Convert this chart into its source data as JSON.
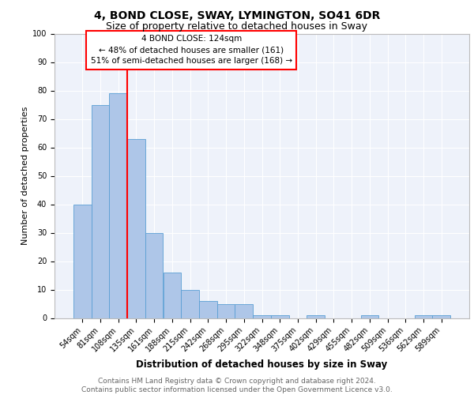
{
  "title1": "4, BOND CLOSE, SWAY, LYMINGTON, SO41 6DR",
  "title2": "Size of property relative to detached houses in Sway",
  "xlabel": "Distribution of detached houses by size in Sway",
  "ylabel": "Number of detached properties",
  "categories": [
    "54sqm",
    "81sqm",
    "108sqm",
    "135sqm",
    "161sqm",
    "188sqm",
    "215sqm",
    "242sqm",
    "268sqm",
    "295sqm",
    "322sqm",
    "348sqm",
    "375sqm",
    "402sqm",
    "429sqm",
    "455sqm",
    "482sqm",
    "509sqm",
    "536sqm",
    "562sqm",
    "589sqm"
  ],
  "values": [
    40,
    75,
    79,
    63,
    30,
    16,
    10,
    6,
    5,
    5,
    1,
    1,
    0,
    1,
    0,
    0,
    1,
    0,
    0,
    1,
    1
  ],
  "bar_color": "#aec6e8",
  "bar_edge_color": "#5a9fd4",
  "vline_x_index": 2.5,
  "vline_color": "red",
  "annotation_text": "4 BOND CLOSE: 124sqm\n← 48% of detached houses are smaller (161)\n51% of semi-detached houses are larger (168) →",
  "annotation_box_color": "white",
  "annotation_box_edge_color": "red",
  "ylim": [
    0,
    100
  ],
  "yticks": [
    0,
    10,
    20,
    30,
    40,
    50,
    60,
    70,
    80,
    90,
    100
  ],
  "background_color": "#eef2fa",
  "grid_color": "white",
  "footer_text": "Contains HM Land Registry data © Crown copyright and database right 2024.\nContains public sector information licensed under the Open Government Licence v3.0.",
  "title1_fontsize": 10,
  "title2_fontsize": 9,
  "xlabel_fontsize": 8.5,
  "ylabel_fontsize": 8,
  "tick_fontsize": 7,
  "annotation_fontsize": 7.5,
  "footer_fontsize": 6.5
}
